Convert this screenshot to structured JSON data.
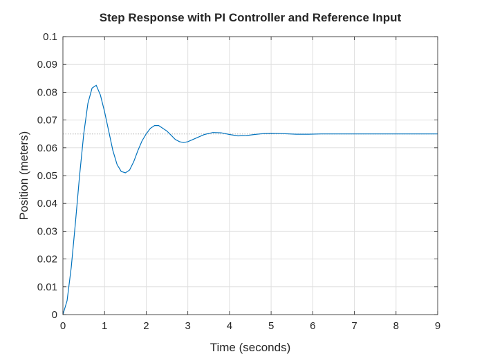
{
  "chart_data": {
    "type": "line",
    "title": "Step Response with PI Controller and Reference Input",
    "xlabel": "Time (seconds)",
    "ylabel": "Position (meters)",
    "xlim": [
      0,
      9
    ],
    "ylim": [
      0,
      0.1
    ],
    "xticks": [
      "0",
      "1",
      "2",
      "3",
      "4",
      "5",
      "6",
      "7",
      "8",
      "9"
    ],
    "yticks": [
      "0",
      "0.01",
      "0.02",
      "0.03",
      "0.04",
      "0.05",
      "0.06",
      "0.07",
      "0.08",
      "0.09",
      "0.1"
    ],
    "grid": true,
    "reference_level": 0.065,
    "series": [
      {
        "color": "#0072BD",
        "x": [
          0,
          0.1,
          0.2,
          0.3,
          0.4,
          0.5,
          0.6,
          0.7,
          0.8,
          0.9,
          1.0,
          1.1,
          1.2,
          1.3,
          1.4,
          1.5,
          1.6,
          1.7,
          1.8,
          1.9,
          2.0,
          2.1,
          2.2,
          2.3,
          2.4,
          2.5,
          2.6,
          2.7,
          2.8,
          2.9,
          3.0,
          3.2,
          3.4,
          3.6,
          3.8,
          4.0,
          4.2,
          4.4,
          4.6,
          4.8,
          5.0,
          5.3,
          5.6,
          5.9,
          6.2,
          6.5,
          7.0,
          7.5,
          8.0,
          8.5,
          9.0
        ],
        "y": [
          0,
          0.005,
          0.017,
          0.033,
          0.05,
          0.065,
          0.076,
          0.0815,
          0.0825,
          0.079,
          0.073,
          0.066,
          0.059,
          0.054,
          0.0515,
          0.051,
          0.052,
          0.055,
          0.059,
          0.0625,
          0.065,
          0.067,
          0.068,
          0.068,
          0.067,
          0.066,
          0.0645,
          0.063,
          0.0622,
          0.0619,
          0.0622,
          0.0635,
          0.0648,
          0.0655,
          0.0654,
          0.0648,
          0.0643,
          0.0644,
          0.0648,
          0.0651,
          0.0652,
          0.0651,
          0.0649,
          0.0649,
          0.065,
          0.065,
          0.065,
          0.065,
          0.065,
          0.065,
          0.065
        ]
      }
    ]
  }
}
